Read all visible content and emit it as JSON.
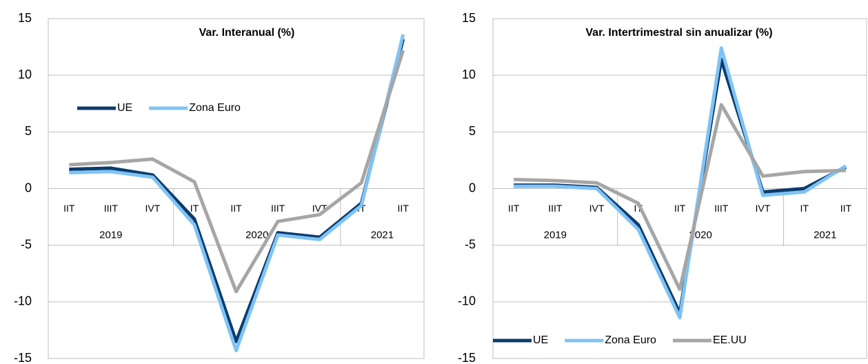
{
  "chart_data": [
    {
      "type": "line",
      "title": "Var. Interanual (%)",
      "groups": [
        {
          "name": "2019",
          "categories": [
            "IIT",
            "IIIT",
            "IVT"
          ]
        },
        {
          "name": "2020",
          "categories": [
            "IT",
            "IIT",
            "IIIT",
            "IVT"
          ]
        },
        {
          "name": "2021",
          "categories": [
            "IT",
            "IIT"
          ]
        }
      ],
      "series": [
        {
          "name": "UE",
          "color": "#0b3c6e",
          "values": [
            1.7,
            1.8,
            1.2,
            -2.7,
            -13.5,
            -3.9,
            -4.3,
            -1.3,
            13.2
          ]
        },
        {
          "name": "Zona Euro",
          "color": "#7fc3f5",
          "values": [
            1.4,
            1.5,
            1.0,
            -3.2,
            -14.3,
            -4.1,
            -4.5,
            -1.5,
            13.6
          ]
        },
        {
          "color": "#a6a6a6",
          "values": [
            2.1,
            2.3,
            2.6,
            0.6,
            -9.1,
            -2.9,
            -2.3,
            0.5,
            12.2
          ]
        }
      ],
      "ylim": [
        -15,
        15
      ],
      "yticks": [
        -15,
        -10,
        -5,
        0,
        5,
        10,
        15
      ],
      "grid": true,
      "legend": "upper left"
    },
    {
      "type": "line",
      "title": "Var. Intertrimestral sin anualizar (%)",
      "groups": [
        {
          "name": "2019",
          "categories": [
            "IIT",
            "IIIT",
            "IVT"
          ]
        },
        {
          "name": "2020",
          "categories": [
            "IT",
            "IIT",
            "IIIT",
            "IVT"
          ]
        },
        {
          "name": "2021",
          "categories": [
            "IT",
            "IIT"
          ]
        }
      ],
      "series": [
        {
          "name": "UE",
          "color": "#0b3c6e",
          "values": [
            0.3,
            0.3,
            0.1,
            -3.2,
            -11.0,
            11.4,
            -0.3,
            0.0,
            1.9
          ]
        },
        {
          "name": "Zona Euro",
          "color": "#7fc3f5",
          "values": [
            0.2,
            0.2,
            0.0,
            -3.6,
            -11.4,
            12.4,
            -0.6,
            -0.3,
            2.0
          ]
        },
        {
          "name": "EE.UU",
          "color": "#a6a6a6",
          "values": [
            0.8,
            0.7,
            0.5,
            -1.3,
            -8.9,
            7.4,
            1.1,
            1.5,
            1.6
          ]
        }
      ],
      "ylim": [
        -15,
        15
      ],
      "yticks": [
        -15,
        -10,
        -5,
        0,
        5,
        10,
        15
      ],
      "grid": true,
      "legend": "lower left"
    }
  ]
}
